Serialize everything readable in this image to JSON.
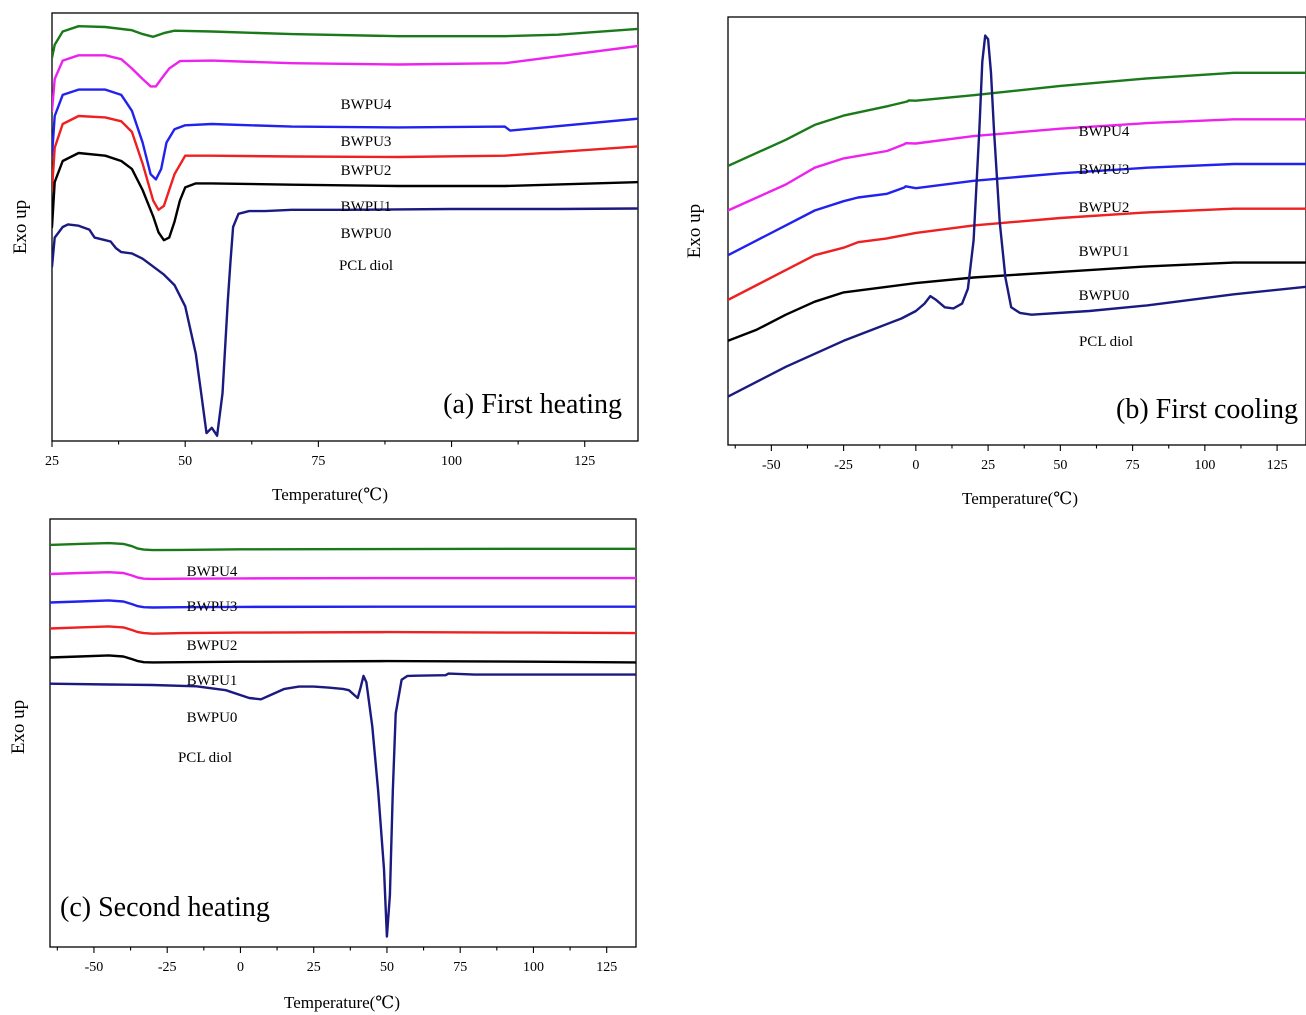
{
  "chart_data": [
    {
      "type": "line",
      "panel_label": "(a) First heating",
      "xlabel": "Temperature(℃)",
      "ylabel": "Exo up",
      "xlim": [
        25,
        135
      ],
      "xticks": [
        25,
        50,
        75,
        100,
        125
      ],
      "series": [
        {
          "name": "BWPU4",
          "color": "#1a7a1a",
          "x": [
            25,
            25.5,
            27,
            30,
            35,
            40,
            42,
            44,
            46,
            48,
            55,
            70,
            90,
            110,
            120,
            135
          ],
          "y": [
            -18,
            -13,
            -8,
            -6,
            -6.3,
            -7.5,
            -9,
            -10,
            -8.6,
            -7.7,
            -8,
            -9,
            -9.8,
            -9.8,
            -9.2,
            -7
          ]
        },
        {
          "name": "BWPU3",
          "color": "#ee22ee",
          "x": [
            25,
            25.5,
            27,
            30,
            35,
            38,
            40,
            42,
            43.5,
            44.5,
            45.5,
            47,
            49,
            55,
            70,
            90,
            110,
            135
          ],
          "y": [
            -38,
            -26,
            -19,
            -17,
            -17,
            -18.5,
            -22,
            -26,
            -28.8,
            -28.8,
            -26,
            -22,
            -19.2,
            -19,
            -20,
            -20.5,
            -20,
            -13.5
          ]
        },
        {
          "name": "BWPU2",
          "color": "#2222ee",
          "x": [
            25,
            25.5,
            27,
            30,
            35,
            38,
            40,
            42,
            43.5,
            44.5,
            45.5,
            46.5,
            48,
            50,
            55,
            70,
            90,
            110,
            111,
            135
          ],
          "y": [
            -55,
            -40,
            -32,
            -30,
            -30,
            -32,
            -38,
            -50,
            -62,
            -64,
            -60,
            -50,
            -45,
            -43.5,
            -43,
            -44,
            -44.3,
            -44,
            -45.5,
            -41
          ]
        },
        {
          "name": "BWPU1",
          "color": "#ee2020",
          "x": [
            25,
            25.5,
            27,
            30,
            35,
            38,
            40,
            42,
            44,
            45,
            46,
            47,
            48,
            50,
            55,
            70,
            90,
            110,
            135
          ],
          "y": [
            -68,
            -52,
            -43,
            -40,
            -40.5,
            -42,
            -46,
            -58,
            -72,
            -75.5,
            -74,
            -68,
            -62,
            -55,
            -55,
            -55.3,
            -55.5,
            -55,
            -51.5
          ]
        },
        {
          "name": "BWPU0",
          "color": "#000000",
          "x": [
            25,
            25.5,
            27,
            30,
            35,
            38,
            40,
            42,
            44,
            45,
            46,
            47,
            48,
            49,
            50,
            52,
            55,
            70,
            90,
            110,
            135
          ],
          "y": [
            -82,
            -65,
            -57,
            -54,
            -55,
            -57,
            -60,
            -68,
            -78,
            -84,
            -87,
            -86,
            -80,
            -72,
            -67,
            -65.5,
            -65.5,
            -66,
            -66.5,
            -66.5,
            -65
          ]
        },
        {
          "name": "PCL diol",
          "color": "#1a1a80",
          "x": [
            25,
            25.5,
            27,
            28,
            30,
            32,
            33,
            35,
            36,
            37,
            38,
            40,
            42,
            44,
            46,
            48,
            50,
            52,
            53,
            54,
            55,
            56,
            57,
            58,
            58.5,
            59,
            60,
            62,
            65,
            70,
            80,
            100,
            120,
            135
          ],
          "y": [
            -97,
            -86,
            -82,
            -81,
            -81.5,
            -83,
            -86,
            -87,
            -87.5,
            -90,
            -91.5,
            -92,
            -94,
            -97,
            -100,
            -104,
            -112,
            -130,
            -145,
            -160,
            -158,
            -161,
            -145,
            -110,
            -95,
            -82,
            -77,
            -76,
            -76,
            -75.5,
            -75.5,
            -75.2,
            -75.2,
            -75
          ]
        }
      ],
      "curve_labels": [
        "BWPU4",
        "BWPU3",
        "BWPU2",
        "BWPU1",
        "BWPU0",
        "PCL diol"
      ]
    },
    {
      "type": "line",
      "panel_label": "(b) First cooling",
      "xlabel": "Temperature(℃)",
      "ylabel": "Exo up",
      "xlim": [
        -65,
        135
      ],
      "xticks": [
        -50,
        -25,
        0,
        25,
        50,
        75,
        100,
        125
      ],
      "series": [
        {
          "name": "BWPU4",
          "color": "#1a7a1a",
          "x": [
            -65,
            -55,
            -45,
            -35,
            -25,
            -10,
            -3,
            -2.5,
            0,
            20,
            50,
            80,
            110,
            135
          ],
          "y": [
            -10,
            -6.5,
            -3,
            1,
            3.5,
            6,
            7.3,
            7.6,
            7.5,
            9,
            11.5,
            13.5,
            15,
            15
          ]
        },
        {
          "name": "BWPU3",
          "color": "#ee22ee",
          "x": [
            -65,
            -55,
            -45,
            -35,
            -25,
            -10,
            -4,
            -3.5,
            0,
            20,
            50,
            80,
            110,
            135
          ],
          "y": [
            -22,
            -18.5,
            -15,
            -10.5,
            -8,
            -6,
            -4.2,
            -3.9,
            -4,
            -2,
            0,
            1.5,
            2.5,
            2.5
          ]
        },
        {
          "name": "BWPU2",
          "color": "#2222ee",
          "x": [
            -65,
            -55,
            -45,
            -35,
            -25,
            -20,
            -10,
            -4,
            -3.5,
            0,
            20,
            50,
            80,
            110,
            135
          ],
          "y": [
            -34,
            -30,
            -26,
            -22,
            -19.5,
            -18.5,
            -17.5,
            -15.8,
            -15.5,
            -16,
            -14,
            -12,
            -10.5,
            -9.5,
            -9.5
          ]
        },
        {
          "name": "BWPU1",
          "color": "#ee2020",
          "x": [
            -65,
            -55,
            -45,
            -35,
            -25,
            -20,
            -10,
            0,
            20,
            50,
            80,
            110,
            135
          ],
          "y": [
            -46,
            -42,
            -38,
            -34,
            -32,
            -30.5,
            -29.5,
            -28,
            -26,
            -24,
            -22.5,
            -21.5,
            -21.5
          ]
        },
        {
          "name": "BWPU0",
          "color": "#000000",
          "x": [
            -65,
            -55,
            -45,
            -35,
            -25,
            -10,
            0,
            20,
            50,
            80,
            110,
            135
          ],
          "y": [
            -57,
            -54,
            -50,
            -46.5,
            -44,
            -42.5,
            -41.5,
            -40,
            -38.5,
            -37,
            -36,
            -36
          ]
        },
        {
          "name": "PCL diol",
          "color": "#1a1a80",
          "x": [
            -65,
            -55,
            -45,
            -35,
            -25,
            -15,
            -5,
            0,
            3,
            5,
            7,
            10,
            13,
            16,
            18,
            20,
            22,
            23,
            24,
            25,
            26,
            27,
            29,
            31,
            33,
            36,
            40,
            60,
            80,
            110,
            135
          ],
          "y": [
            -72,
            -68,
            -64,
            -60.5,
            -57,
            -54,
            -51,
            -49,
            -47,
            -45,
            -46,
            -48,
            -48.3,
            -47,
            -43,
            -30,
            0,
            18,
            25,
            24,
            15,
            0,
            -25,
            -40,
            -48,
            -49.5,
            -50,
            -49,
            -47.5,
            -44.5,
            -42.5
          ]
        }
      ],
      "curve_labels": [
        "BWPU4",
        "BWPU3",
        "BWPU2",
        "BWPU1",
        "BWPU0",
        "PCL diol"
      ]
    },
    {
      "type": "line",
      "panel_label": "(c) Second heating",
      "xlabel": "Temperature(℃)",
      "ylabel": "Exo up",
      "xlim": [
        -65,
        135
      ],
      "xticks": [
        -50,
        -25,
        0,
        25,
        50,
        75,
        100,
        125
      ],
      "series": [
        {
          "name": "BWPU4",
          "color": "#1a7a1a",
          "x": [
            -65,
            -55,
            -45,
            -40,
            -37,
            -35,
            -33,
            -30,
            -20,
            0,
            50,
            100,
            135
          ],
          "y": [
            -5,
            -4.6,
            -4.3,
            -4.6,
            -5.5,
            -6.4,
            -6.8,
            -7,
            -6.9,
            -6.7,
            -6.6,
            -6.5,
            -6.5
          ]
        },
        {
          "name": "BWPU3",
          "color": "#ee22ee",
          "x": [
            -65,
            -55,
            -45,
            -40,
            -37,
            -35,
            -33,
            -30,
            -20,
            0,
            50,
            100,
            135
          ],
          "y": [
            -16.2,
            -15.8,
            -15.5,
            -15.8,
            -16.8,
            -17.6,
            -18,
            -18.1,
            -18,
            -17.9,
            -17.8,
            -17.8,
            -17.8
          ]
        },
        {
          "name": "BWPU2",
          "color": "#2222ee",
          "x": [
            -65,
            -55,
            -45,
            -40,
            -37,
            -35,
            -33,
            -30,
            -20,
            0,
            50,
            100,
            135
          ],
          "y": [
            -27.2,
            -26.8,
            -26.4,
            -26.8,
            -27.8,
            -28.6,
            -29,
            -29.1,
            -29,
            -28.9,
            -28.8,
            -28.8,
            -28.8
          ]
        },
        {
          "name": "BWPU1",
          "color": "#ee2020",
          "x": [
            -65,
            -55,
            -45,
            -40,
            -37,
            -35,
            -33,
            -30,
            -20,
            0,
            50,
            100,
            135
          ],
          "y": [
            -37.2,
            -36.8,
            -36.4,
            -36.8,
            -37.8,
            -38.6,
            -39,
            -39.2,
            -39,
            -38.8,
            -38.6,
            -38.8,
            -39
          ]
        },
        {
          "name": "BWPU0",
          "color": "#000000",
          "x": [
            -65,
            -55,
            -45,
            -40,
            -37,
            -35,
            -33,
            -30,
            -20,
            0,
            50,
            100,
            135
          ],
          "y": [
            -48.4,
            -48,
            -47.6,
            -48,
            -49,
            -49.8,
            -50.2,
            -50.3,
            -50.2,
            -50,
            -49.8,
            -50,
            -50.3
          ]
        },
        {
          "name": "PCL diol",
          "color": "#1a1a80",
          "x": [
            -65,
            -45,
            -30,
            -15,
            -5,
            3,
            7,
            10,
            15,
            20,
            25,
            30,
            35,
            37,
            39,
            40,
            41,
            42,
            43,
            45,
            47,
            49,
            50,
            51,
            52,
            53,
            55,
            57,
            60,
            70,
            71,
            80,
            100,
            135
          ],
          "y": [
            -58.5,
            -58.8,
            -59,
            -59.5,
            -61,
            -64,
            -64.5,
            -63,
            -60.5,
            -59.6,
            -59.6,
            -60,
            -60.5,
            -61,
            -63,
            -64,
            -60,
            -55.5,
            -58,
            -75,
            -100,
            -130,
            -156,
            -140,
            -100,
            -70,
            -57,
            -55.5,
            -55.4,
            -55.2,
            -54.6,
            -55,
            -55,
            -55
          ]
        }
      ],
      "curve_labels": [
        "BWPU4",
        "BWPU3",
        "BWPU2",
        "BWPU1",
        "BWPU0",
        "PCL diol"
      ]
    }
  ]
}
